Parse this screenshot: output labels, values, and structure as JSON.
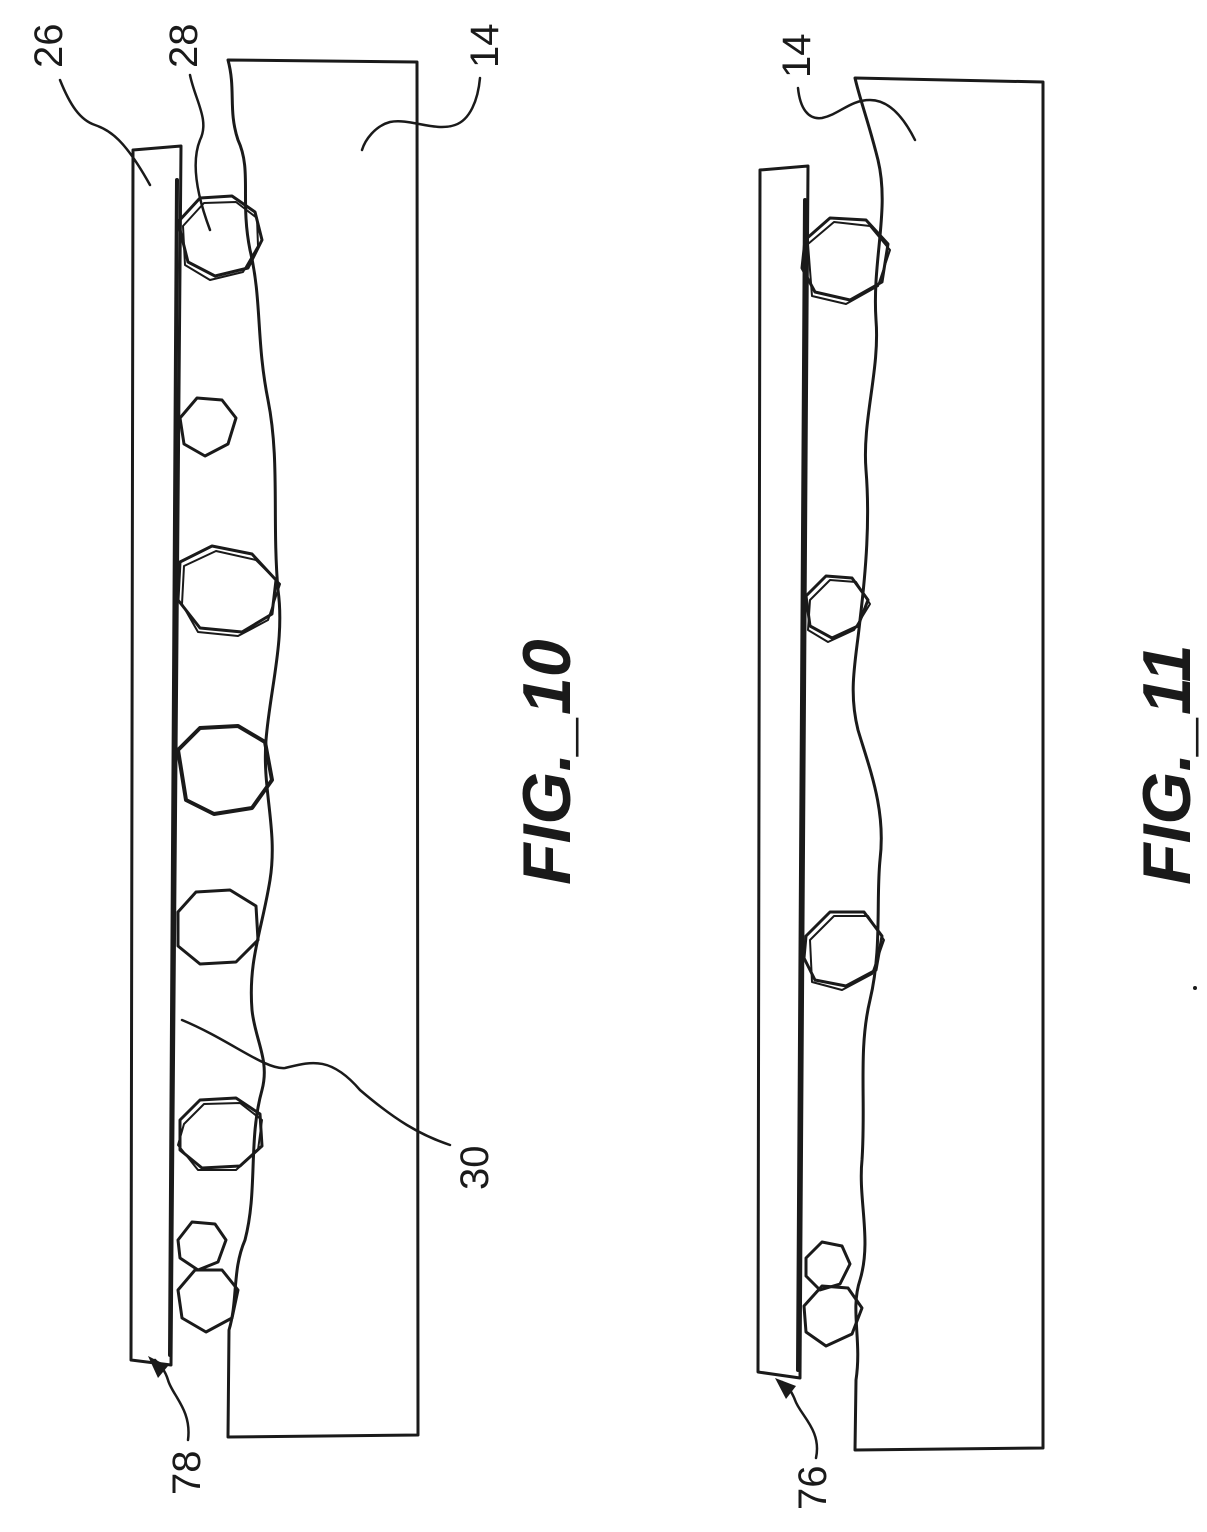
{
  "figures": [
    {
      "caption": "FIG._10",
      "labels": {
        "plate": "26",
        "particle": "28",
        "substrate": "14",
        "adhesive": "30",
        "edge": "78"
      }
    },
    {
      "caption": "FIG._11",
      "labels": {
        "substrate": "14",
        "edge": "76"
      }
    }
  ],
  "colors": {
    "ink": "#1a1a1a",
    "paper": "#ffffff"
  }
}
